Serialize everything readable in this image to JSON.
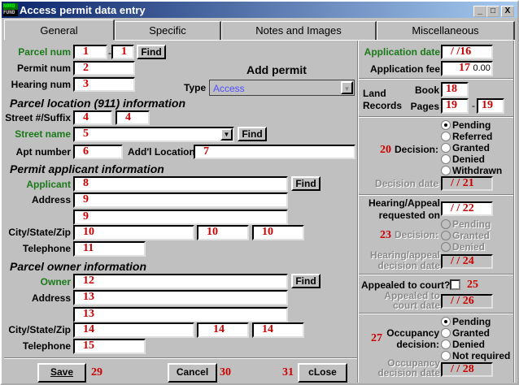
{
  "window": {
    "title": "Access permit data entry",
    "icon_text_top": "NORD",
    "icon_text_bottom": "FUND",
    "min": "_",
    "max": "□",
    "close": "X"
  },
  "tabs": [
    "General",
    "Specific",
    "Notes and Images",
    "Miscellaneous"
  ],
  "general": {
    "parcel_num_label": "Parcel num",
    "parcel_num_1": "1",
    "parcel_dash": "-",
    "parcel_num_2": "1",
    "find": "Find",
    "permit_num_label": "Permit num",
    "permit_num": "2",
    "hearing_num_label": "Hearing num",
    "hearing_num": "3",
    "add_permit": "Add permit",
    "type_label": "Type",
    "type_value": "Access",
    "parcel_location_heading": "Parcel location (911) information",
    "street_suffix_label": "Street #/Suffix",
    "street_num": "4",
    "street_suffix": "4",
    "street_name_label": "Street name",
    "street_name": "5",
    "apt_label": "Apt number",
    "apt": "6",
    "addl_location_label": "Add'l Location",
    "addl_location": "7",
    "applicant_heading": "Permit applicant information",
    "applicant_label": "Applicant",
    "applicant": "8",
    "address_label": "Address",
    "address1": "9",
    "address2": "9",
    "city_state_zip_label": "City/State/Zip",
    "city": "10",
    "state": "10",
    "zip": "10",
    "telephone_label": "Telephone",
    "telephone": "11",
    "owner_heading": "Parcel owner information",
    "owner_label": "Owner",
    "owner": "12",
    "owner_address1": "13",
    "owner_address2": "13",
    "owner_city": "14",
    "owner_state": "14",
    "owner_zip": "14",
    "owner_telephone": "15"
  },
  "buttons": {
    "save": "Save",
    "save_marker": "29",
    "cancel": "Cancel",
    "cancel_marker": "30",
    "close_marker": "31",
    "close": "cLose"
  },
  "right": {
    "application_date_label": "Application date",
    "application_date": "/ /16",
    "application_fee_label": "Application fee",
    "application_fee_marker": "17",
    "application_fee": "0.00",
    "land_records_label": "Land Records",
    "book_label": "Book",
    "book": "18",
    "pages_label": "Pages",
    "pages_from": "19",
    "pages_dash": "-",
    "pages_to": "19",
    "decision_marker": "20",
    "decision_label": "Decision:",
    "decision_options": [
      "Pending",
      "Referred",
      "Granted",
      "Denied",
      "Withdrawn"
    ],
    "decision_selected": "Pending",
    "decision_date_label": "Decision date",
    "decision_date": "/ / 21",
    "hearing_requested_label": "Hearing/Appeal requested on",
    "hearing_requested": "/ / 22",
    "hearing_decision_marker": "23",
    "hearing_decision_label": "Decision:",
    "hearing_decision_options": [
      "Pending",
      "Granted",
      "Denied"
    ],
    "hearing_decision_date_label": "Hearing/appeal decision date",
    "hearing_decision_date": "/ /  24",
    "appealed_label": "Appealed to court?",
    "appealed_checked": false,
    "appealed_marker": "25",
    "appealed_date_label": "Appealed to court date",
    "appealed_date": "/ /  26",
    "occupancy_marker": "27",
    "occupancy_label": "Occupancy decision:",
    "occupancy_options": [
      "Pending",
      "Granted",
      "Denied",
      "Not required"
    ],
    "occupancy_selected": "Pending",
    "occupancy_date_label": "Occupancy decision date",
    "occupancy_date": "/ /  28"
  }
}
